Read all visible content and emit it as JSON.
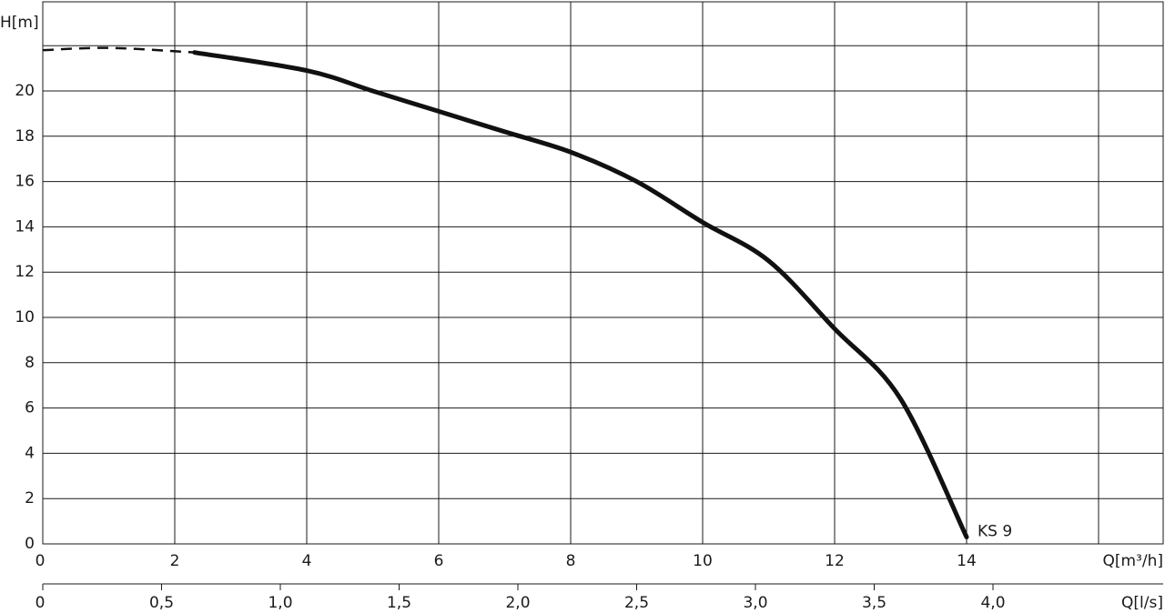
{
  "chart_data": {
    "type": "line",
    "ylabel": "H[m]",
    "xlabel": "Q[m³/h]",
    "xlabel_secondary": "Q[l/s]",
    "xlim": [
      0,
      15.2
    ],
    "ylim": [
      0,
      24.2
    ],
    "grid": true,
    "y_ticks": [
      {
        "v": 0,
        "label": "0"
      },
      {
        "v": 2,
        "label": "2"
      },
      {
        "v": 4,
        "label": "4"
      },
      {
        "v": 6,
        "label": "6"
      },
      {
        "v": 8,
        "label": "8"
      },
      {
        "v": 10,
        "label": "10"
      },
      {
        "v": 12,
        "label": "12"
      },
      {
        "v": 14,
        "label": "14"
      },
      {
        "v": 16,
        "label": "16"
      },
      {
        "v": 18,
        "label": "18"
      },
      {
        "v": 20,
        "label": "20"
      }
    ],
    "y_gridlines": [
      0,
      2,
      4,
      6,
      8,
      10,
      12,
      14,
      16,
      18,
      20,
      22
    ],
    "x_ticks": [
      {
        "v": 0,
        "label": "0"
      },
      {
        "v": 2,
        "label": "2"
      },
      {
        "v": 4,
        "label": "4"
      },
      {
        "v": 6,
        "label": "6"
      },
      {
        "v": 8,
        "label": "8"
      },
      {
        "v": 10,
        "label": "10"
      },
      {
        "v": 12,
        "label": "12"
      },
      {
        "v": 14,
        "label": "14"
      }
    ],
    "x_gridlines": [
      0,
      2,
      4,
      6,
      8,
      10,
      12,
      14,
      16
    ],
    "x2_ticks": [
      {
        "v": 0,
        "label": "0"
      },
      {
        "v": 0.5,
        "label": "0,5"
      },
      {
        "v": 1.0,
        "label": "1,0"
      },
      {
        "v": 1.5,
        "label": "1,5"
      },
      {
        "v": 2.0,
        "label": "2,0"
      },
      {
        "v": 2.5,
        "label": "2,5"
      },
      {
        "v": 3.0,
        "label": "3,0"
      },
      {
        "v": 3.5,
        "label": "3,5"
      },
      {
        "v": 4.0,
        "label": "4,0"
      }
    ],
    "series": [
      {
        "name": "KS 9",
        "dashed": {
          "x": [
            0,
            1.0,
            2.3
          ],
          "y": [
            21.8,
            21.9,
            21.7
          ]
        },
        "solid": {
          "x": [
            2.3,
            4,
            5,
            6,
            7,
            8,
            9,
            10,
            11,
            12,
            13,
            14
          ],
          "y": [
            21.7,
            20.9,
            20.0,
            19.1,
            18.2,
            17.3,
            16.0,
            14.2,
            12.5,
            9.5,
            6.4,
            0.3
          ]
        }
      }
    ]
  }
}
